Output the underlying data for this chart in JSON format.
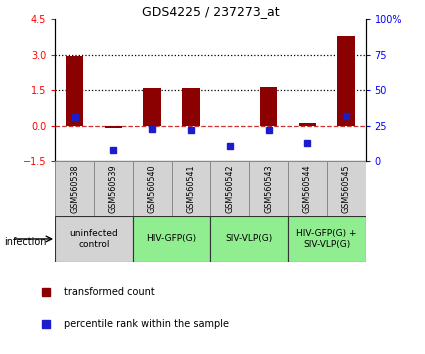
{
  "title": "GDS4225 / 237273_at",
  "samples": [
    "GSM560538",
    "GSM560539",
    "GSM560540",
    "GSM560541",
    "GSM560542",
    "GSM560543",
    "GSM560544",
    "GSM560545"
  ],
  "red_values": [
    2.95,
    -0.1,
    1.6,
    1.58,
    0.0,
    1.63,
    0.12,
    3.82
  ],
  "blue_values": [
    0.35,
    -1.05,
    -0.12,
    -0.18,
    -0.88,
    -0.18,
    -0.75,
    0.42
  ],
  "ylim_left": [
    -1.5,
    4.5
  ],
  "ylim_right": [
    0,
    100
  ],
  "yticks_left": [
    -1.5,
    0,
    1.5,
    3,
    4.5
  ],
  "yticks_right": [
    0,
    25,
    50,
    75,
    100
  ],
  "dotted_lines": [
    1.5,
    3.0
  ],
  "dashed_line": 0.0,
  "groups": [
    {
      "label": "uninfected\ncontrol",
      "samples": [
        0,
        1
      ],
      "color": "#d3d3d3"
    },
    {
      "label": "HIV-GFP(G)",
      "samples": [
        2,
        3
      ],
      "color": "#90ee90"
    },
    {
      "label": "SIV-VLP(G)",
      "samples": [
        4,
        5
      ],
      "color": "#90ee90"
    },
    {
      "label": "HIV-GFP(G) +\nSIV-VLP(G)",
      "samples": [
        6,
        7
      ],
      "color": "#90ee90"
    }
  ],
  "infection_label": "infection",
  "legend_red": "transformed count",
  "legend_blue": "percentile rank within the sample",
  "bar_color": "#8b0000",
  "blue_color": "#1c1ccc",
  "bar_width": 0.45,
  "sample_bg_color": "#d3d3d3",
  "sample_border_color": "#888888",
  "group_border_color": "#333333"
}
